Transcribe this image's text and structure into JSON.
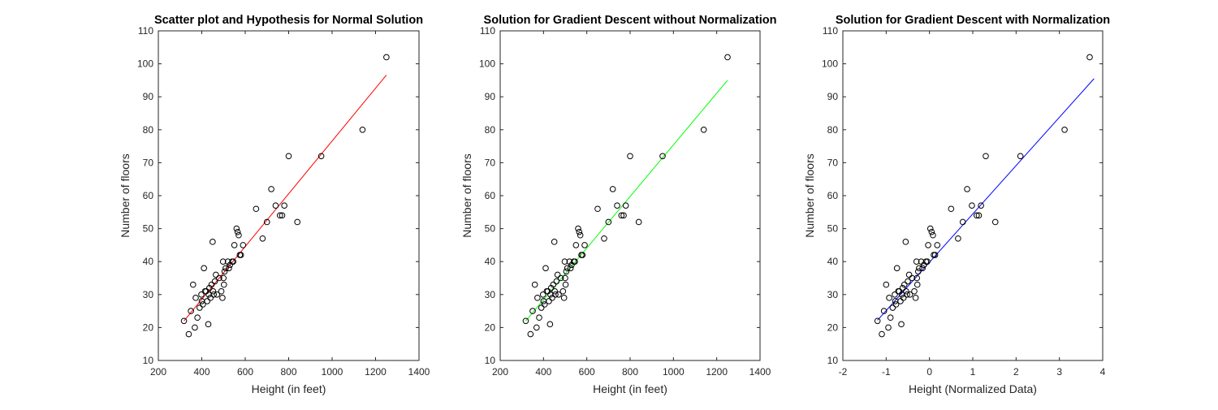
{
  "chart_data": [
    {
      "type": "scatter",
      "title": "Scatter plot and Hypothesis for Normal Solution",
      "xlabel": "Height (in feet)",
      "ylabel": "Number of floors",
      "xlim": [
        200,
        1400
      ],
      "ylim": [
        10,
        110
      ],
      "xticks": [
        200,
        400,
        600,
        800,
        1000,
        1200,
        1400
      ],
      "yticks": [
        10,
        20,
        30,
        40,
        50,
        60,
        70,
        80,
        90,
        100,
        110
      ],
      "line_color": "#ff0000",
      "fit_line": {
        "x": [
          318,
          1250
        ],
        "y": [
          22,
          96.6
        ]
      },
      "points": {
        "x": [
          318,
          340,
          350,
          360,
          368,
          372,
          380,
          390,
          398,
          400,
          405,
          410,
          415,
          420,
          425,
          430,
          432,
          435,
          440,
          445,
          450,
          452,
          455,
          460,
          465,
          470,
          480,
          490,
          495,
          498,
          500,
          502,
          505,
          510,
          520,
          525,
          530,
          540,
          545,
          550,
          560,
          565,
          570,
          575,
          580,
          590,
          650,
          680,
          700,
          720,
          740,
          760,
          770,
          780,
          800,
          840,
          950,
          1140,
          1250
        ],
        "y": [
          22,
          18,
          25,
          33,
          20,
          29,
          23,
          26,
          30,
          28,
          27,
          38,
          31,
          31,
          28,
          21,
          30,
          32,
          29,
          33,
          46,
          31,
          30,
          34,
          36,
          30,
          35,
          31,
          29,
          40,
          35,
          33,
          37,
          38,
          40,
          38,
          39,
          40,
          40,
          45,
          50,
          49,
          48,
          42,
          42,
          45,
          56,
          47,
          52,
          62,
          57,
          54,
          54,
          57,
          72,
          52,
          72,
          80,
          102
        ]
      }
    },
    {
      "type": "scatter",
      "title": "Solution for Gradient Descent without Normalization",
      "xlabel": "Height (in feet)",
      "ylabel": "Number of floors",
      "xlim": [
        200,
        1400
      ],
      "ylim": [
        10,
        110
      ],
      "xticks": [
        200,
        400,
        600,
        800,
        1000,
        1200,
        1400
      ],
      "yticks": [
        10,
        20,
        30,
        40,
        50,
        60,
        70,
        80,
        90,
        100,
        110
      ],
      "line_color": "#00ff00",
      "fit_line": {
        "x": [
          318,
          1250
        ],
        "y": [
          22,
          95
        ]
      },
      "points": {
        "x": [
          318,
          340,
          350,
          360,
          368,
          372,
          380,
          390,
          398,
          400,
          405,
          410,
          415,
          420,
          425,
          430,
          432,
          435,
          440,
          445,
          450,
          452,
          455,
          460,
          465,
          470,
          480,
          490,
          495,
          498,
          500,
          502,
          505,
          510,
          520,
          525,
          530,
          540,
          545,
          550,
          560,
          565,
          570,
          575,
          580,
          590,
          650,
          680,
          700,
          720,
          740,
          760,
          770,
          780,
          800,
          840,
          950,
          1140,
          1250
        ],
        "y": [
          22,
          18,
          25,
          33,
          20,
          29,
          23,
          26,
          30,
          28,
          27,
          38,
          31,
          31,
          28,
          21,
          30,
          32,
          29,
          33,
          46,
          31,
          30,
          34,
          36,
          30,
          35,
          31,
          29,
          40,
          35,
          33,
          37,
          38,
          40,
          38,
          39,
          40,
          40,
          45,
          50,
          49,
          48,
          42,
          42,
          45,
          56,
          47,
          52,
          62,
          57,
          54,
          54,
          57,
          72,
          52,
          72,
          80,
          102
        ]
      }
    },
    {
      "type": "scatter",
      "title": "Solution for Gradient Descent with Normalization",
      "xlabel": "Height (Normalized Data)",
      "ylabel": "Number of floors",
      "xlim": [
        -2,
        4
      ],
      "ylim": [
        10,
        110
      ],
      "xticks": [
        -2,
        -1,
        0,
        1,
        2,
        3,
        4
      ],
      "yticks": [
        10,
        20,
        30,
        40,
        50,
        60,
        70,
        80,
        90,
        100,
        110
      ],
      "line_color": "#0000ff",
      "fit_line": {
        "x": [
          -1.2,
          3.8
        ],
        "y": [
          22.2,
          95.5
        ]
      },
      "points": {
        "x": [
          -1.2,
          -1.1,
          -1.05,
          -1.0,
          -0.95,
          -0.93,
          -0.9,
          -0.85,
          -0.8,
          -0.79,
          -0.77,
          -0.75,
          -0.72,
          -0.7,
          -0.67,
          -0.65,
          -0.64,
          -0.62,
          -0.6,
          -0.58,
          -0.55,
          -0.54,
          -0.52,
          -0.5,
          -0.47,
          -0.45,
          -0.4,
          -0.35,
          -0.32,
          -0.3,
          -0.29,
          -0.28,
          -0.26,
          -0.24,
          -0.19,
          -0.16,
          -0.13,
          -0.08,
          -0.05,
          -0.03,
          0.02,
          0.05,
          0.08,
          0.1,
          0.13,
          0.18,
          0.5,
          0.66,
          0.77,
          0.87,
          0.98,
          1.09,
          1.14,
          1.19,
          1.3,
          1.52,
          2.1,
          3.12,
          3.7
        ],
        "y": [
          22,
          18,
          25,
          33,
          20,
          29,
          23,
          26,
          30,
          28,
          27,
          38,
          31,
          31,
          28,
          21,
          30,
          32,
          29,
          33,
          46,
          31,
          30,
          34,
          36,
          30,
          35,
          31,
          29,
          40,
          35,
          33,
          37,
          38,
          40,
          38,
          39,
          40,
          40,
          45,
          50,
          49,
          48,
          42,
          42,
          45,
          56,
          47,
          52,
          62,
          57,
          54,
          54,
          57,
          72,
          52,
          72,
          80,
          102
        ]
      }
    }
  ]
}
